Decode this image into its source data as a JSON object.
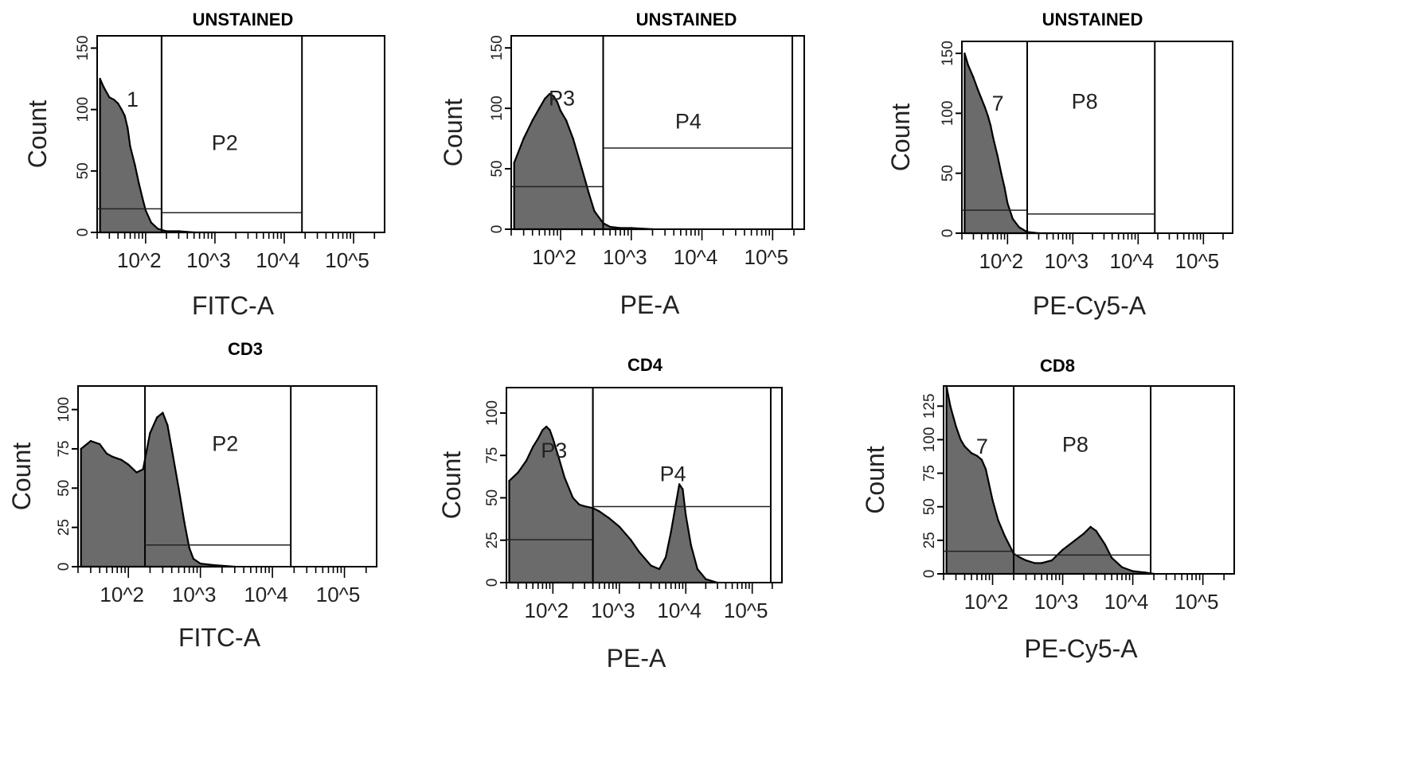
{
  "chart_data": [
    {
      "type": "histogram",
      "title": "UNSTAINED",
      "xlabel": "FITC-A",
      "ylabel": "Count",
      "x_scale": "log",
      "xlim": [
        20,
        280000
      ],
      "ylim": [
        0,
        160
      ],
      "y_ticks": [
        "0",
        "50",
        "100",
        "150"
      ],
      "x_ticks": [
        "10^2",
        "10^3",
        "10^4",
        "10^5"
      ],
      "gates": [
        {
          "name": "1",
          "from": 20,
          "to": 170,
          "type": "interval"
        },
        {
          "name": "P2",
          "from": 170,
          "to": 18000,
          "type": "interval"
        }
      ],
      "histogram": {
        "x": [
          22,
          25,
          30,
          35,
          40,
          45,
          50,
          55,
          60,
          70,
          80,
          90,
          100,
          120,
          150,
          200,
          300,
          500,
          1000
        ],
        "y": [
          125,
          118,
          110,
          108,
          105,
          100,
          95,
          85,
          70,
          55,
          40,
          28,
          18,
          8,
          3,
          1,
          1,
          0,
          0
        ]
      }
    },
    {
      "type": "histogram",
      "title": "UNSTAINED",
      "xlabel": "PE-A",
      "ylabel": "Count",
      "x_scale": "log",
      "xlim": [
        20,
        280000
      ],
      "ylim": [
        0,
        160
      ],
      "y_ticks": [
        "0",
        "50",
        "100",
        "150"
      ],
      "x_ticks": [
        "10^2",
        "10^3",
        "10^4",
        "10^5"
      ],
      "gates": [
        {
          "name": "P3",
          "from": 20,
          "to": 400,
          "type": "interval"
        },
        {
          "name": "P4",
          "from": 400,
          "to": 190000,
          "type": "interval"
        }
      ],
      "histogram": {
        "x": [
          22,
          30,
          40,
          50,
          60,
          70,
          80,
          90,
          100,
          120,
          150,
          200,
          250,
          300,
          400,
          500,
          700,
          1000,
          2000
        ],
        "y": [
          55,
          75,
          90,
          100,
          108,
          112,
          110,
          105,
          98,
          90,
          75,
          50,
          30,
          15,
          5,
          2,
          1,
          1,
          0
        ]
      }
    },
    {
      "type": "histogram",
      "title": "UNSTAINED",
      "xlabel": "PE-Cy5-A",
      "ylabel": "Count",
      "x_scale": "log",
      "xlim": [
        20,
        280000
      ],
      "ylim": [
        0,
        160
      ],
      "y_ticks": [
        "0",
        "50",
        "100",
        "150"
      ],
      "x_ticks": [
        "10^2",
        "10^3",
        "10^4",
        "10^5"
      ],
      "gates": [
        {
          "name": "7",
          "from": 20,
          "to": 200,
          "type": "interval"
        },
        {
          "name": "P8",
          "from": 200,
          "to": 18000,
          "type": "interval"
        }
      ],
      "histogram": {
        "x": [
          22,
          25,
          30,
          35,
          40,
          45,
          50,
          55,
          60,
          70,
          80,
          90,
          100,
          120,
          150,
          200,
          300,
          500
        ],
        "y": [
          150,
          140,
          130,
          120,
          112,
          105,
          98,
          90,
          80,
          65,
          50,
          38,
          25,
          12,
          5,
          1,
          0,
          0
        ]
      }
    },
    {
      "type": "histogram",
      "title": "CD3",
      "xlabel": "FITC-A",
      "ylabel": "Count",
      "x_scale": "log",
      "xlim": [
        20,
        280000
      ],
      "ylim": [
        0,
        115
      ],
      "y_ticks": [
        "0",
        "25",
        "50",
        "75",
        "100"
      ],
      "x_ticks": [
        "10^2",
        "10^3",
        "10^4",
        "10^5"
      ],
      "gates": [
        {
          "name": "P2",
          "from": 170,
          "to": 18000,
          "type": "interval"
        }
      ],
      "histogram": {
        "x": [
          22,
          30,
          40,
          50,
          60,
          80,
          100,
          130,
          160,
          200,
          250,
          300,
          350,
          400,
          500,
          600,
          700,
          800,
          1000,
          1500,
          3000
        ],
        "y": [
          75,
          80,
          78,
          72,
          70,
          68,
          65,
          60,
          62,
          85,
          95,
          98,
          90,
          75,
          50,
          28,
          12,
          5,
          2,
          1,
          0
        ]
      }
    },
    {
      "type": "histogram",
      "title": "CD4",
      "xlabel": "PE-A",
      "ylabel": "Count",
      "x_scale": "log",
      "xlim": [
        20,
        280000
      ],
      "ylim": [
        0,
        115
      ],
      "y_ticks": [
        "0",
        "25",
        "50",
        "75",
        "100"
      ],
      "x_ticks": [
        "10^2",
        "10^3",
        "10^4",
        "10^5"
      ],
      "gates": [
        {
          "name": "P3",
          "from": 20,
          "to": 400,
          "type": "interval"
        },
        {
          "name": "P4",
          "from": 400,
          "to": 190000,
          "type": "interval"
        }
      ],
      "histogram": {
        "x": [
          22,
          30,
          40,
          50,
          60,
          70,
          80,
          90,
          100,
          120,
          150,
          200,
          250,
          300,
          400,
          500,
          700,
          1000,
          1500,
          2000,
          3000,
          4000,
          5000,
          6000,
          7000,
          8000,
          9000,
          10000,
          12000,
          15000,
          20000,
          30000
        ],
        "y": [
          60,
          65,
          72,
          80,
          85,
          90,
          92,
          90,
          85,
          75,
          62,
          50,
          46,
          45,
          44,
          42,
          38,
          33,
          25,
          18,
          10,
          8,
          15,
          30,
          45,
          58,
          55,
          40,
          22,
          8,
          2,
          0
        ]
      }
    },
    {
      "type": "histogram",
      "title": "CD8",
      "xlabel": "PE-Cy5-A",
      "ylabel": "Count",
      "x_scale": "log",
      "xlim": [
        20,
        280000
      ],
      "ylim": [
        0,
        140
      ],
      "y_ticks": [
        "0",
        "25",
        "50",
        "75",
        "100",
        "125"
      ],
      "x_ticks": [
        "10^2",
        "10^3",
        "10^4",
        "10^5"
      ],
      "gates": [
        {
          "name": "7",
          "from": 20,
          "to": 200,
          "type": "interval"
        },
        {
          "name": "P8",
          "from": 200,
          "to": 18000,
          "type": "interval"
        }
      ],
      "histogram": {
        "x": [
          22,
          25,
          30,
          35,
          40,
          50,
          60,
          70,
          80,
          100,
          120,
          150,
          200,
          250,
          300,
          400,
          500,
          700,
          1000,
          1500,
          2000,
          2500,
          3000,
          4000,
          5000,
          7000,
          10000,
          15000,
          20000
        ],
        "y": [
          140,
          125,
          110,
          100,
          95,
          90,
          88,
          85,
          78,
          55,
          40,
          28,
          15,
          12,
          10,
          8,
          8,
          10,
          18,
          25,
          30,
          35,
          32,
          22,
          12,
          5,
          2,
          1,
          0
        ]
      }
    }
  ]
}
